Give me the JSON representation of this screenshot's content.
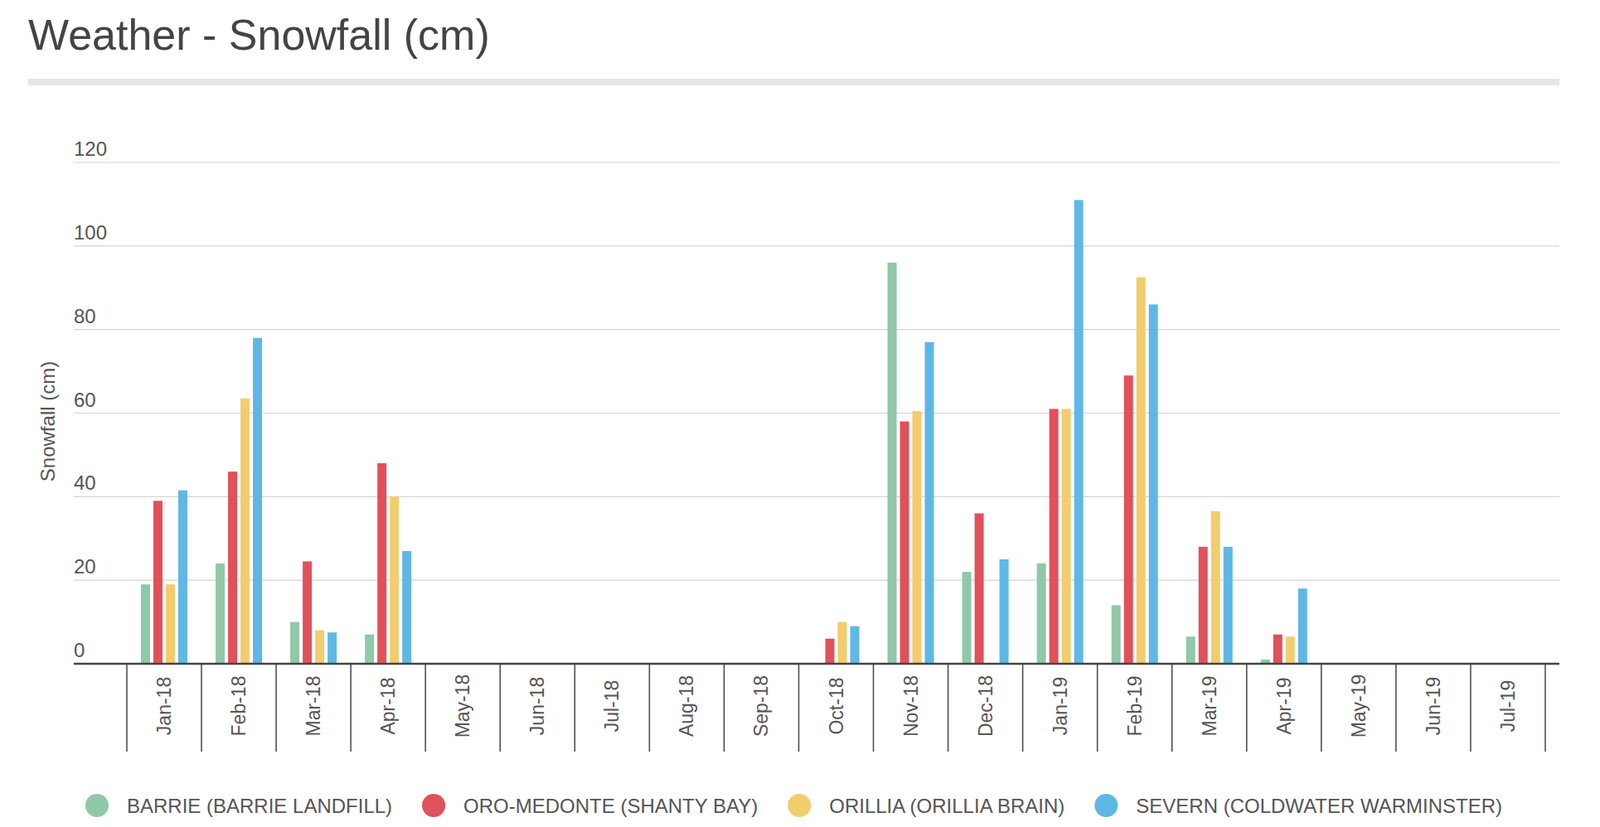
{
  "chart_data": {
    "type": "bar",
    "title": "Weather - Snowfall (cm)",
    "y_label": "Snowfall (cm)",
    "categories": [
      "Jan-18",
      "Feb-18",
      "Mar-18",
      "Apr-18",
      "May-18",
      "Jun-18",
      "Jul-18",
      "Aug-18",
      "Sep-18",
      "Oct-18",
      "Nov-18",
      "Dec-18",
      "Jan-19",
      "Feb-19",
      "Mar-19",
      "Apr-19",
      "May-19",
      "Jun-19",
      "Jul-19"
    ],
    "series": [
      {
        "name": "BARRIE (BARRIE LANDFILL)",
        "color": "#8fc9a8",
        "values": [
          19,
          24,
          10,
          7,
          null,
          null,
          null,
          null,
          null,
          null,
          96,
          22,
          24,
          14,
          6.5,
          1,
          null,
          null,
          null
        ]
      },
      {
        "name": "ORO-MEDONTE (SHANTY BAY)",
        "color": "#e0515a",
        "values": [
          39,
          46,
          24.5,
          48,
          null,
          null,
          null,
          null,
          null,
          6,
          58,
          36,
          61,
          69,
          28,
          7,
          null,
          null,
          null
        ]
      },
      {
        "name": "ORILLIA (ORILLIA BRAIN)",
        "color": "#f2cd6e",
        "values": [
          19,
          63.5,
          8,
          40,
          null,
          null,
          null,
          null,
          null,
          10,
          60.5,
          null,
          61,
          92.5,
          36.5,
          6.5,
          null,
          null,
          null
        ]
      },
      {
        "name": "SEVERN (COLDWATER WARMINSTER)",
        "color": "#5eb8e6",
        "values": [
          41.5,
          78,
          7.5,
          27,
          null,
          null,
          null,
          null,
          null,
          9,
          77,
          25,
          111,
          86,
          28,
          18,
          null,
          null,
          null
        ]
      }
    ],
    "ylim": [
      0,
      120
    ],
    "yticks": [
      0,
      20,
      40,
      60,
      80,
      100,
      120
    ],
    "grid": true,
    "legend": "bottom"
  }
}
